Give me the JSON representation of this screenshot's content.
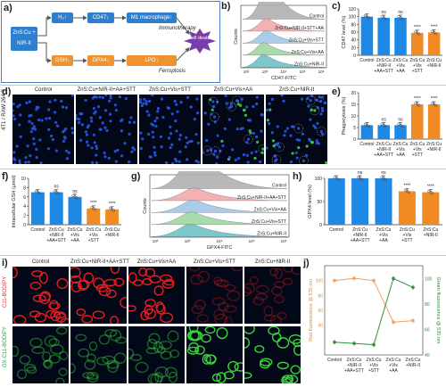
{
  "panel_labels": {
    "a": "a)",
    "b": "b)",
    "c": "c)",
    "d": "d)",
    "e": "e)",
    "f": "f)",
    "g": "g)",
    "h": "h)",
    "i": "i)",
    "j": "j)"
  },
  "scheme": {
    "input": "ZnS:Cu + NIR-II",
    "h2": "H₂↑",
    "cd47": "CD47↓",
    "m1": "M1 macrophage↑",
    "gsh": "GSH↓",
    "gpx4": "GPX4↓",
    "lpo": "LPO↑",
    "immuno": "Immunotherapy",
    "ferro": "Ferroptosis",
    "death": "cell death"
  },
  "groups_bar": [
    "Control",
    "ZnS:Cu +NIR-II +AA+STT",
    "ZnS:Cu +Vis +AA",
    "ZnS:Cu +Vis +STT",
    "ZnS:Cu +NIR-II"
  ],
  "groups_bar_lines": [
    [
      "Control"
    ],
    [
      "ZnS:Cu",
      "+NIR-II",
      "+AA+STT"
    ],
    [
      "ZnS:Cu",
      "+Vis",
      "+AA"
    ],
    [
      "ZnS:Cu",
      "+Vis",
      "+STT"
    ],
    [
      "ZnS:Cu",
      "+NIR-II"
    ]
  ],
  "groups_j_lines": [
    [
      "Control"
    ],
    [
      "ZnS:Cu",
      "+NIR-II",
      "+AA+STT"
    ],
    [
      "ZnS:Cu",
      "+Vis",
      "+STT"
    ],
    [
      "ZnS:Cu",
      "+Vis",
      "+AA"
    ],
    [
      "ZnS:Cu",
      "+NIR-II"
    ]
  ],
  "flow_b": {
    "xlabel": "CD47-FITC",
    "ylabel": "Counts",
    "rows": [
      "Control",
      "ZnS:Cu+NIR-II+STT+AA",
      "ZnS:Cu+Vis+STT",
      "ZnS:Cu+Vis+AA",
      "ZnS:Cu+NIR-II"
    ],
    "colors": [
      "#b0b0b0",
      "#f2a8a8",
      "#9fc6e8",
      "#9fd6a2",
      "#6fc0c4"
    ]
  },
  "flow_g": {
    "xlabel": "GPX4-FITC",
    "ylabel": "Counts",
    "rows": [
      "Control",
      "ZnS:Cu+NIR-II+AA+STT",
      "ZnS:Cu+Vis+AA",
      "ZnS:Cu+Vis+STT",
      "ZnS:Cu+NIR-II"
    ],
    "colors": [
      "#b0b0b0",
      "#f2a8a8",
      "#9fc6e8",
      "#9fd6a2",
      "#6fc0c4"
    ]
  },
  "micro_d": {
    "titles": [
      "Control",
      "ZnS:Cu+NIR-II+AA+STT",
      "ZnS:Cu+Vis+STT",
      "ZnS:Cu+Vis+AA",
      "ZnS:Cu+NIR-II"
    ],
    "row_label": "4T1 / RAW 264.7"
  },
  "micro_i": {
    "titles": [
      "Control",
      "ZnS:Cu+NIR-II+AA+STT",
      "ZnS:Cu+Vis+AA",
      "ZnS:Cu+Vis+STT",
      "ZnS:Cu+NIR-II"
    ],
    "row1": "C11-BODIPY",
    "row2": "OX-C11-BODIPY"
  },
  "colors": {
    "blue_bar": "#1e88e5",
    "orange_bar": "#f08a24",
    "scheme_border": "#4b7fc0",
    "red_line": "#f0a060",
    "green_line": "#2e8b3a"
  },
  "chart_data": [
    {
      "id": "c",
      "type": "bar",
      "ylabel": "CD47 level (%)",
      "ylim": [
        0,
        120
      ],
      "yticks": [
        0,
        20,
        40,
        60,
        80,
        100,
        120
      ],
      "categories": [
        "Control",
        "ZnS:Cu +NIR-II +AA+STT",
        "ZnS:Cu +Vis +STT",
        "ZnS:Cu +Vis +AA",
        "ZnS:Cu +NIR-II"
      ],
      "values": [
        100,
        97,
        97,
        58,
        59
      ],
      "sig": [
        "",
        "ns",
        "ns",
        "****",
        "****"
      ]
    },
    {
      "id": "e",
      "type": "bar",
      "ylabel": "Phagocytosis (%)",
      "ylim": [
        0,
        20
      ],
      "yticks": [
        0,
        5,
        10,
        15,
        20
      ],
      "categories": [
        "Control",
        "ZnS:Cu +NIR-II +AA+STT",
        "ZnS:Cu +Vis +STT",
        "ZnS:Cu +Vis +AA",
        "ZnS:Cu +NIR-II"
      ],
      "values": [
        6,
        6,
        6,
        15,
        15
      ],
      "sig": [
        "",
        "ns",
        "ns",
        "****",
        "****"
      ]
    },
    {
      "id": "f",
      "type": "bar",
      "ylabel": "Intracellular GSH (µmol)",
      "ylim": [
        0,
        10
      ],
      "yticks": [
        0,
        2,
        4,
        6,
        8,
        10
      ],
      "categories": [
        "Control",
        "ZnS:Cu +NIR-II +AA+STT",
        "ZnS:Cu +Vis +AA",
        "ZnS:Cu +Vis +STT",
        "ZnS:Cu +NIR-II"
      ],
      "values": [
        7,
        7,
        6,
        3.5,
        3.3
      ],
      "sig": [
        "",
        "ns",
        "ns",
        "****",
        "****"
      ]
    },
    {
      "id": "h",
      "type": "bar",
      "ylabel": "GPX4 level (%)",
      "ylim": [
        0,
        100
      ],
      "yticks": [
        0,
        50,
        100
      ],
      "categories": [
        "Control",
        "ZnS:Cu +NIR-II +AA+STT",
        "ZnS:Cu +Vis +AA",
        "ZnS:Cu +Vis +STT",
        "ZnS:Cu +NIR-II"
      ],
      "values": [
        100,
        100,
        100,
        72,
        70
      ],
      "sig": [
        "",
        "ns",
        "ns",
        "****",
        "****"
      ]
    },
    {
      "id": "j",
      "type": "line",
      "ylabel_left": "Red fluorescence @ 535 nm",
      "ylabel_right": "Green fluorescence @ 535 nm",
      "categories": [
        "Control",
        "ZnS:Cu +NIR-II +AA+STT",
        "ZnS:Cu +Vis +STT",
        "ZnS:Cu +Vis +AA",
        "ZnS:Cu +NIR-II"
      ],
      "ylim_left": [
        0,
        120
      ],
      "yticks_left": [
        40,
        60,
        80,
        100
      ],
      "ylim_right": [
        40,
        110
      ],
      "yticks_right": [
        40,
        60,
        80,
        100
      ],
      "series": [
        {
          "name": "Red fluorescence @ 535 nm",
          "axis": "left",
          "values": [
            100,
            103,
            100,
            44,
            46
          ]
        },
        {
          "name": "Green fluorescence @ 535 nm",
          "axis": "right",
          "values": [
            50,
            49,
            48,
            100,
            93
          ]
        }
      ]
    }
  ]
}
